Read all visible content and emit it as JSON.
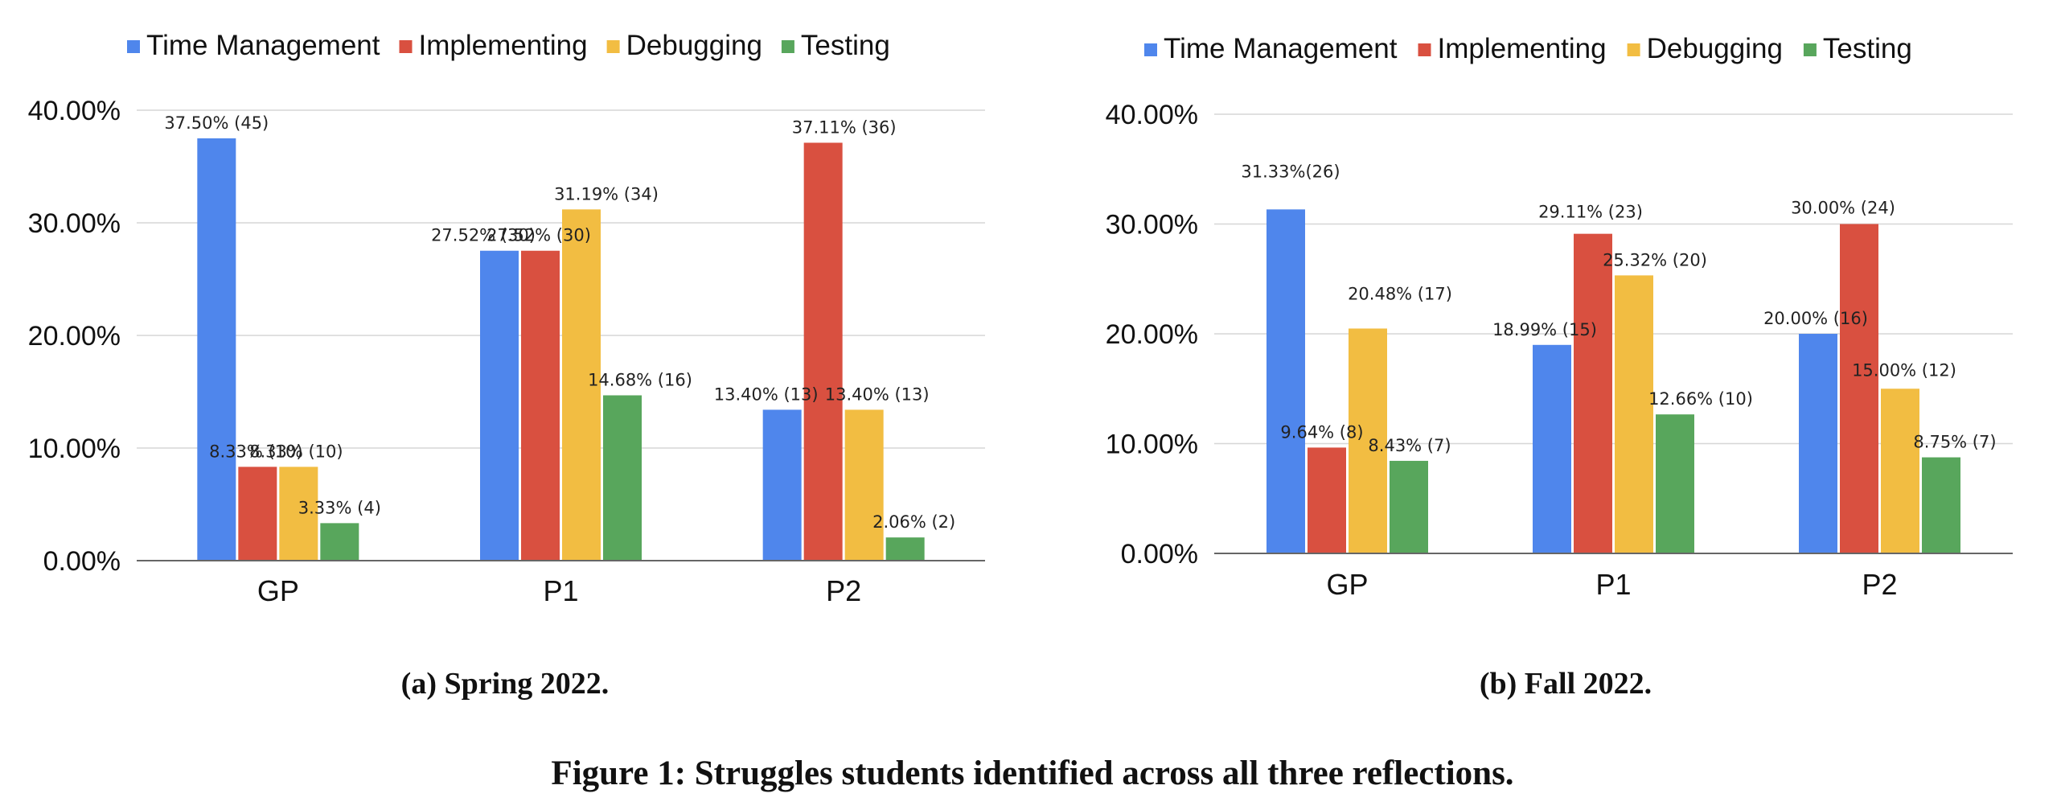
{
  "chart_data": [
    {
      "type": "bar",
      "caption": "(a) Spring 2022.",
      "categories": [
        "GP",
        "P1",
        "P2"
      ],
      "ylim": [
        0,
        40
      ],
      "yticks": [
        "0.00%",
        "10.00%",
        "20.00%",
        "30.00%",
        "40.00%"
      ],
      "grid": true,
      "legend_position": "top",
      "series": [
        {
          "name": "Time Management",
          "color": "#4F86EC",
          "values": [
            37.5,
            27.52,
            13.4
          ],
          "labels": [
            "37.50% (45)",
            "27.52% (30)",
            "13.40% (13)"
          ]
        },
        {
          "name": "Implementing",
          "color": "#D95040",
          "values": [
            8.33,
            27.52,
            37.11
          ],
          "labels": [
            "8.33% (10)",
            "27.52% (30)",
            "37.11% (36)"
          ]
        },
        {
          "name": "Debugging",
          "color": "#F2BD42",
          "values": [
            8.33,
            31.19,
            13.4
          ],
          "labels": [
            "8.33% (10)",
            "31.19% (34)",
            "13.40% (13)"
          ]
        },
        {
          "name": "Testing",
          "color": "#58A65C",
          "values": [
            3.33,
            14.68,
            2.06
          ],
          "labels": [
            "3.33% (4)",
            "14.68% (16)",
            "2.06% (2)"
          ]
        }
      ]
    },
    {
      "type": "bar",
      "caption": "(b) Fall 2022.",
      "categories": [
        "GP",
        "P1",
        "P2"
      ],
      "ylim": [
        0,
        40
      ],
      "yticks": [
        "0.00%",
        "10.00%",
        "20.00%",
        "30.00%",
        "40.00%"
      ],
      "grid": true,
      "legend_position": "top",
      "series": [
        {
          "name": "Time Management",
          "color": "#4F86EC",
          "values": [
            31.33,
            18.99,
            20.0
          ],
          "labels": [
            "31.33%(26)",
            "18.99% (15)",
            "20.00% (16)"
          ]
        },
        {
          "name": "Implementing",
          "color": "#D95040",
          "values": [
            9.64,
            29.11,
            30.0
          ],
          "labels": [
            "9.64% (8)",
            "29.11% (23)",
            "30.00% (24)"
          ]
        },
        {
          "name": "Debugging",
          "color": "#F2BD42",
          "values": [
            20.48,
            25.32,
            15.0
          ],
          "labels": [
            "20.48% (17)",
            "25.32% (20)",
            "15.00% (12)"
          ]
        },
        {
          "name": "Testing",
          "color": "#58A65C",
          "values": [
            8.43,
            12.66,
            8.75
          ],
          "labels": [
            "8.43% (7)",
            "12.66% (10)",
            "8.75% (7)"
          ]
        }
      ]
    }
  ],
  "figure_caption": "Figure 1: Struggles students identified across all three reflections."
}
